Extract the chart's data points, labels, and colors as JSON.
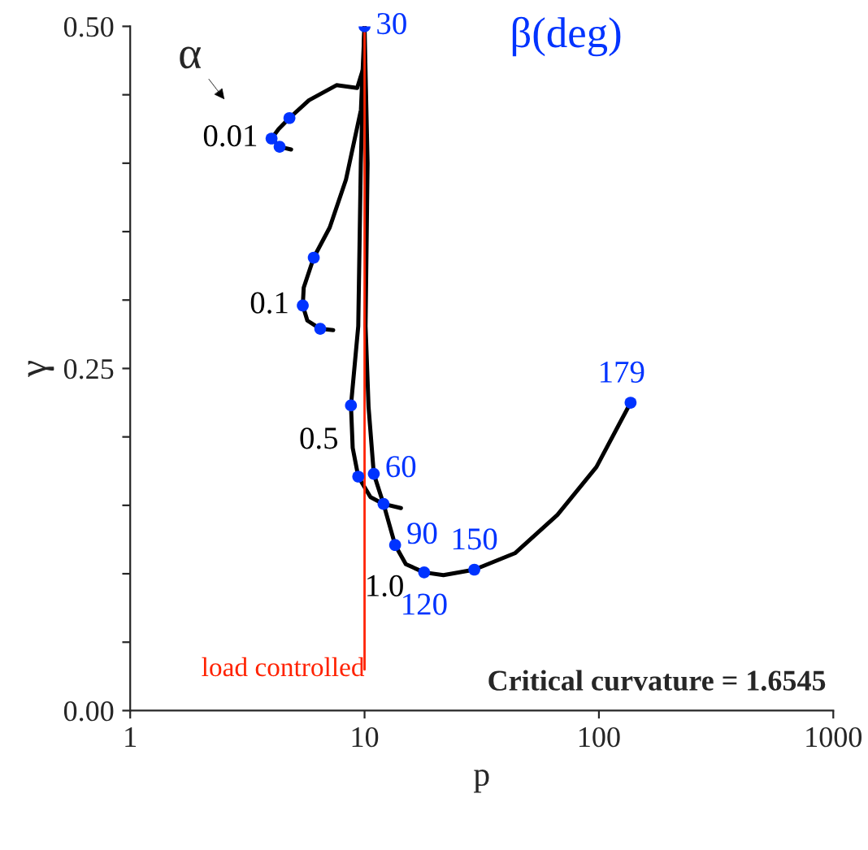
{
  "chart_data": {
    "type": "line",
    "xlabel": "p",
    "ylabel": "γ",
    "log": "x",
    "xlim": [
      1,
      1000
    ],
    "xticks": [
      1,
      10,
      100,
      1000
    ],
    "ylim": [
      0,
      0.5
    ],
    "yticks": [
      {
        "value": 0,
        "label": "0.00"
      },
      {
        "value": 0.05,
        "label": null
      },
      {
        "value": 0.1,
        "label": null
      },
      {
        "value": 0.15,
        "label": null
      },
      {
        "value": 0.2,
        "label": null
      },
      {
        "value": 0.25,
        "label": "0.25"
      },
      {
        "value": 0.3,
        "label": null
      },
      {
        "value": 0.35,
        "label": null
      },
      {
        "value": 0.4,
        "label": null
      },
      {
        "value": 0.45,
        "label": null
      },
      {
        "value": 0.5,
        "label": "0.50"
      }
    ],
    "line_style": "solid",
    "series": [
      {
        "color": "#000000",
        "x": [
          10,
          9.9,
          9.3,
          7.59,
          5.79,
          4.78,
          4.3,
          4.01,
          4.34,
          4.86
        ],
        "values": [
          0.5,
          0.47,
          0.455,
          0.457,
          0.446,
          0.433,
          0.425,
          0.418,
          0.412,
          0.41
        ]
      },
      {
        "color": "#000000",
        "x": [
          10,
          9.65,
          8.33,
          7.1,
          6.07,
          5.5,
          5.45,
          5.7,
          6.47,
          7.35
        ],
        "values": [
          0.5,
          0.439,
          0.388,
          0.353,
          0.331,
          0.309,
          0.296,
          0.285,
          0.279,
          0.278
        ]
      },
      {
        "color": "#000000",
        "x": [
          10,
          9.64,
          9.4,
          8.75,
          8.9,
          9.4,
          10.6,
          12.05,
          14.3
        ],
        "values": [
          0.5,
          0.4,
          0.281,
          0.223,
          0.192,
          0.171,
          0.156,
          0.151,
          0.148
        ]
      },
      {
        "color": "#000000",
        "x": [
          10,
          10.3,
          10.1,
          10.4,
          10.95,
          12.05,
          13.5,
          15.0,
          17.96,
          21.7,
          29.4,
          43.8,
          66.5,
          97.6,
          136.5
        ],
        "values": [
          0.5,
          0.4,
          0.281,
          0.222,
          0.173,
          0.151,
          0.121,
          0.107,
          0.101,
          0.099,
          0.103,
          0.115,
          0.143,
          0.178,
          0.225
        ]
      },
      {
        "type": "scatter",
        "color": "#0033ff",
        "x": [
          10,
          4.78,
          4.01,
          4.34,
          6.07,
          5.45,
          6.47,
          8.75,
          9.4,
          12.05,
          10.95,
          13.5,
          17.96,
          29.4,
          136.5
        ],
        "values": [
          0.5,
          0.433,
          0.418,
          0.412,
          0.331,
          0.296,
          0.279,
          0.223,
          0.171,
          0.151,
          0.173,
          0.121,
          0.101,
          0.103,
          0.225
        ]
      }
    ],
    "ref_lines": [
      {
        "axis": "x",
        "value": 10,
        "label": "load controlled",
        "color": "#ff2200"
      }
    ],
    "annotations": [
      "α",
      {
        "text": "0.01",
        "x": 4.01,
        "y": 0.418
      },
      {
        "text": "0.1",
        "x": 5.45,
        "y": 0.296
      },
      {
        "text": "0.5",
        "x": 8.85,
        "y": 0.197
      },
      {
        "text": "1.0",
        "x": 16.5,
        "y": 0.103
      },
      {
        "text": "30",
        "x": 10,
        "y": 0.5
      },
      {
        "text": "60",
        "x": 10.95,
        "y": 0.173
      },
      {
        "text": "90",
        "x": 13.5,
        "y": 0.121
      },
      {
        "text": "120",
        "x": 17.96,
        "y": 0.101
      },
      {
        "text": "150",
        "x": 29.4,
        "y": 0.103
      },
      {
        "text": "179",
        "x": 136.5,
        "y": 0.225
      },
      "β(deg)",
      "Critical curvature = 1.6545"
    ]
  }
}
